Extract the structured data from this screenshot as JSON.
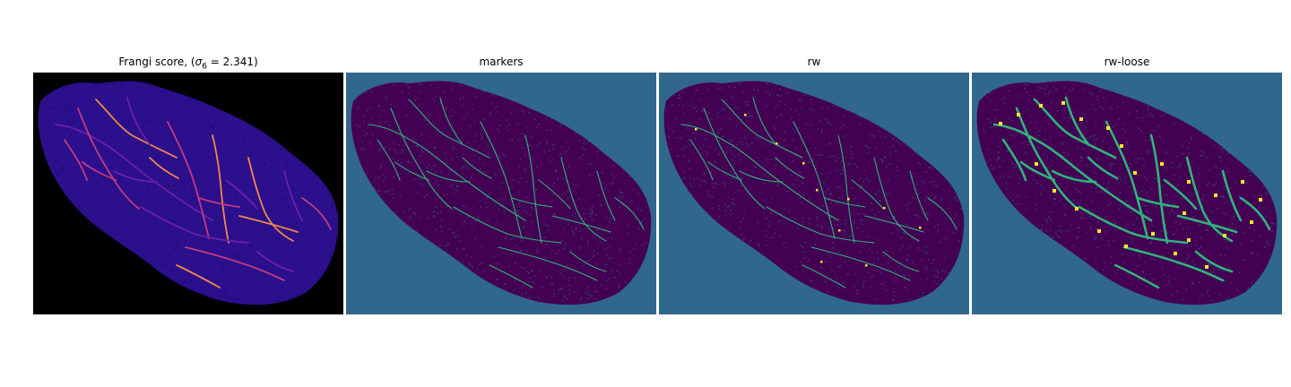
{
  "panels": [
    {
      "id": "frangi",
      "title_prefix": "Frangi score, (",
      "title_sigma": "σ",
      "title_sub": "6",
      "title_suffix": " = 2.341)",
      "background": "#000000",
      "tissue_color": "#2b0f8c",
      "vessel_colors": [
        "#6d1fa6",
        "#c13b82",
        "#f0884a"
      ]
    },
    {
      "id": "markers",
      "title": "markers",
      "background": "#30678d",
      "tissue_color": "#440154",
      "vessel_colors": [
        "#2fb47c"
      ]
    },
    {
      "id": "rw",
      "title": "rw",
      "background": "#30678d",
      "tissue_color": "#440154",
      "vessel_colors": [
        "#2fb47c",
        "#fde725"
      ]
    },
    {
      "id": "rw-loose",
      "title": "rw-loose",
      "background": "#30678d",
      "tissue_color": "#440154",
      "vessel_colors": [
        "#2fb47c",
        "#fde725"
      ]
    }
  ]
}
